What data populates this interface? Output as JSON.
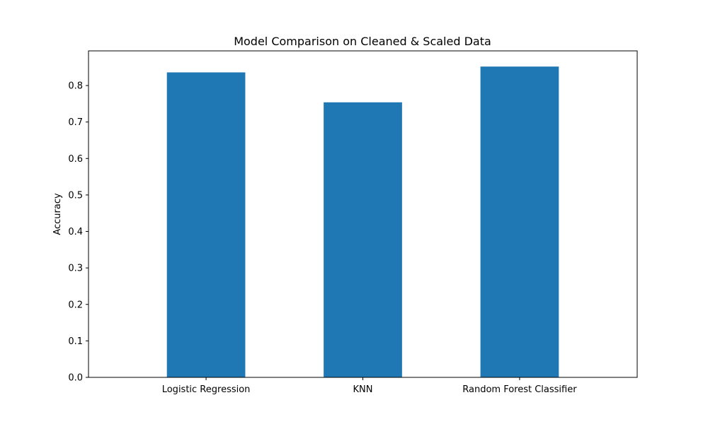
{
  "chart_data": {
    "type": "bar",
    "title": "Model Comparison on Cleaned & Scaled Data",
    "xlabel": "",
    "ylabel": "Accuracy",
    "categories": [
      "Logistic Regression",
      "KNN",
      "Random Forest Classifier"
    ],
    "values": [
      0.836,
      0.754,
      0.852
    ],
    "ylim": [
      0,
      0.895
    ],
    "yticks": [
      0.0,
      0.1,
      0.2,
      0.3,
      0.4,
      0.5,
      0.6,
      0.7,
      0.8
    ],
    "ytick_labels": [
      "0.0",
      "0.1",
      "0.2",
      "0.3",
      "0.4",
      "0.5",
      "0.6",
      "0.7",
      "0.8"
    ],
    "bar_color": "#1f77b4",
    "grid": false,
    "legend": "none"
  }
}
